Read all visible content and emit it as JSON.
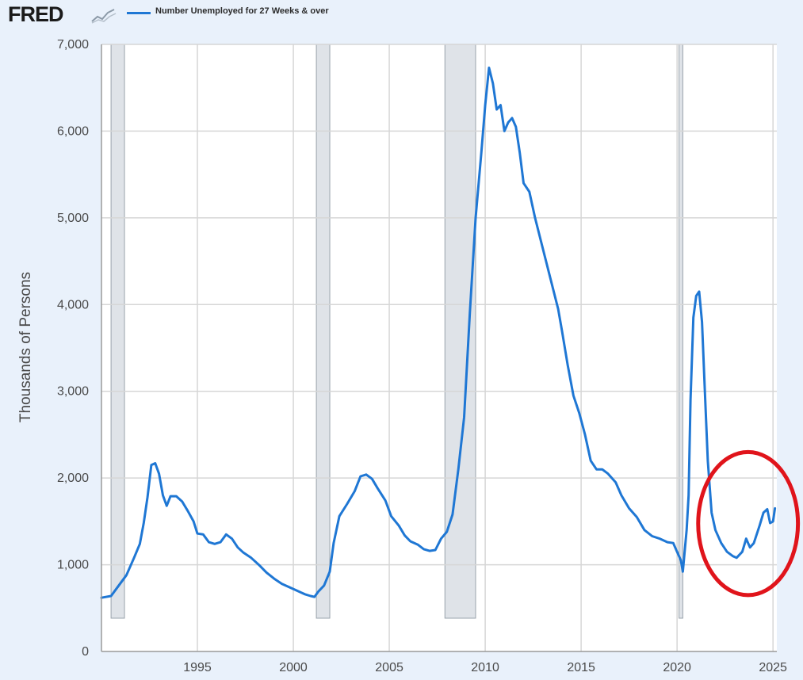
{
  "header": {
    "logo_text": "FRED",
    "legend_label": "Number Unemployed for 27 Weeks & over"
  },
  "colors": {
    "series": "#1f77d4",
    "annotation_circle": "#e0141b",
    "recession_shading": "#dfe3e8",
    "grid": "#d6d6d6",
    "background": "#e9f1fb"
  },
  "chart_data": {
    "type": "line",
    "title": "",
    "xlabel": "",
    "ylabel": "Thousands of Persons",
    "xlim": [
      1990.0,
      2025.2
    ],
    "ylim": [
      0,
      7000
    ],
    "x_ticks": [
      1995,
      2000,
      2005,
      2010,
      2015,
      2020,
      2025
    ],
    "x_tick_labels": [
      "1995",
      "2000",
      "2005",
      "2010",
      "2015",
      "2020",
      "2025"
    ],
    "y_ticks": [
      0,
      1000,
      2000,
      3000,
      4000,
      5000,
      6000,
      7000
    ],
    "y_tick_labels": [
      "0",
      "1,000",
      "2,000",
      "3,000",
      "4,000",
      "5,000",
      "6,000",
      "7,000"
    ],
    "grid": true,
    "legend": "top-left",
    "recessions": [
      [
        1990.5,
        1991.2
      ],
      [
        2001.2,
        2001.9
      ],
      [
        2007.9,
        2009.5
      ],
      [
        2020.1,
        2020.3
      ]
    ],
    "annotation": {
      "type": "ellipse",
      "x_range": [
        2021.1,
        2026.3
      ],
      "y_range": [
        650,
        2300
      ]
    },
    "series": [
      {
        "name": "Number Unemployed for 27 Weeks & over",
        "color": "#1f77d4",
        "points": [
          [
            1990.0,
            620
          ],
          [
            1990.5,
            640
          ],
          [
            1990.9,
            760
          ],
          [
            1991.3,
            880
          ],
          [
            1991.7,
            1080
          ],
          [
            1992.0,
            1240
          ],
          [
            1992.2,
            1480
          ],
          [
            1992.4,
            1780
          ],
          [
            1992.6,
            2150
          ],
          [
            1992.8,
            2170
          ],
          [
            1993.0,
            2050
          ],
          [
            1993.2,
            1800
          ],
          [
            1993.4,
            1680
          ],
          [
            1993.6,
            1790
          ],
          [
            1993.9,
            1790
          ],
          [
            1994.2,
            1730
          ],
          [
            1994.5,
            1620
          ],
          [
            1994.8,
            1500
          ],
          [
            1995.0,
            1360
          ],
          [
            1995.3,
            1350
          ],
          [
            1995.6,
            1260
          ],
          [
            1995.9,
            1240
          ],
          [
            1996.2,
            1260
          ],
          [
            1996.5,
            1350
          ],
          [
            1996.8,
            1300
          ],
          [
            1997.1,
            1200
          ],
          [
            1997.4,
            1140
          ],
          [
            1997.8,
            1080
          ],
          [
            1998.2,
            1000
          ],
          [
            1998.6,
            910
          ],
          [
            1999.0,
            840
          ],
          [
            1999.4,
            780
          ],
          [
            1999.8,
            740
          ],
          [
            2000.2,
            700
          ],
          [
            2000.6,
            660
          ],
          [
            2000.9,
            640
          ],
          [
            2001.1,
            630
          ],
          [
            2001.3,
            690
          ],
          [
            2001.6,
            760
          ],
          [
            2001.9,
            920
          ],
          [
            2002.1,
            1250
          ],
          [
            2002.4,
            1560
          ],
          [
            2002.8,
            1700
          ],
          [
            2003.2,
            1850
          ],
          [
            2003.5,
            2020
          ],
          [
            2003.8,
            2040
          ],
          [
            2004.1,
            1990
          ],
          [
            2004.4,
            1880
          ],
          [
            2004.8,
            1740
          ],
          [
            2005.1,
            1560
          ],
          [
            2005.5,
            1450
          ],
          [
            2005.8,
            1340
          ],
          [
            2006.1,
            1270
          ],
          [
            2006.5,
            1230
          ],
          [
            2006.8,
            1180
          ],
          [
            2007.1,
            1160
          ],
          [
            2007.4,
            1170
          ],
          [
            2007.7,
            1300
          ],
          [
            2008.0,
            1380
          ],
          [
            2008.3,
            1580
          ],
          [
            2008.6,
            2100
          ],
          [
            2008.9,
            2700
          ],
          [
            2009.2,
            3900
          ],
          [
            2009.5,
            5000
          ],
          [
            2009.8,
            5750
          ],
          [
            2010.0,
            6300
          ],
          [
            2010.2,
            6730
          ],
          [
            2010.4,
            6550
          ],
          [
            2010.6,
            6250
          ],
          [
            2010.8,
            6300
          ],
          [
            2011.0,
            6000
          ],
          [
            2011.2,
            6100
          ],
          [
            2011.4,
            6150
          ],
          [
            2011.6,
            6050
          ],
          [
            2011.8,
            5750
          ],
          [
            2012.0,
            5400
          ],
          [
            2012.3,
            5300
          ],
          [
            2012.6,
            5000
          ],
          [
            2013.0,
            4650
          ],
          [
            2013.4,
            4300
          ],
          [
            2013.8,
            3950
          ],
          [
            2014.0,
            3700
          ],
          [
            2014.3,
            3300
          ],
          [
            2014.6,
            2950
          ],
          [
            2014.9,
            2750
          ],
          [
            2015.2,
            2500
          ],
          [
            2015.5,
            2200
          ],
          [
            2015.8,
            2100
          ],
          [
            2016.1,
            2100
          ],
          [
            2016.4,
            2050
          ],
          [
            2016.8,
            1950
          ],
          [
            2017.1,
            1800
          ],
          [
            2017.5,
            1650
          ],
          [
            2017.9,
            1550
          ],
          [
            2018.3,
            1400
          ],
          [
            2018.7,
            1330
          ],
          [
            2019.1,
            1300
          ],
          [
            2019.5,
            1260
          ],
          [
            2019.8,
            1250
          ],
          [
            2020.0,
            1150
          ],
          [
            2020.2,
            1050
          ],
          [
            2020.3,
            920
          ],
          [
            2020.5,
            1400
          ],
          [
            2020.6,
            1800
          ],
          [
            2020.7,
            2900
          ],
          [
            2020.85,
            3850
          ],
          [
            2021.0,
            4100
          ],
          [
            2021.15,
            4150
          ],
          [
            2021.3,
            3800
          ],
          [
            2021.45,
            3000
          ],
          [
            2021.6,
            2200
          ],
          [
            2021.8,
            1600
          ],
          [
            2022.0,
            1400
          ],
          [
            2022.3,
            1250
          ],
          [
            2022.6,
            1150
          ],
          [
            2022.9,
            1100
          ],
          [
            2023.1,
            1080
          ],
          [
            2023.4,
            1150
          ],
          [
            2023.6,
            1300
          ],
          [
            2023.8,
            1200
          ],
          [
            2024.0,
            1250
          ],
          [
            2024.3,
            1450
          ],
          [
            2024.5,
            1600
          ],
          [
            2024.7,
            1640
          ],
          [
            2024.85,
            1480
          ],
          [
            2025.0,
            1500
          ],
          [
            2025.1,
            1650
          ]
        ]
      }
    ]
  }
}
